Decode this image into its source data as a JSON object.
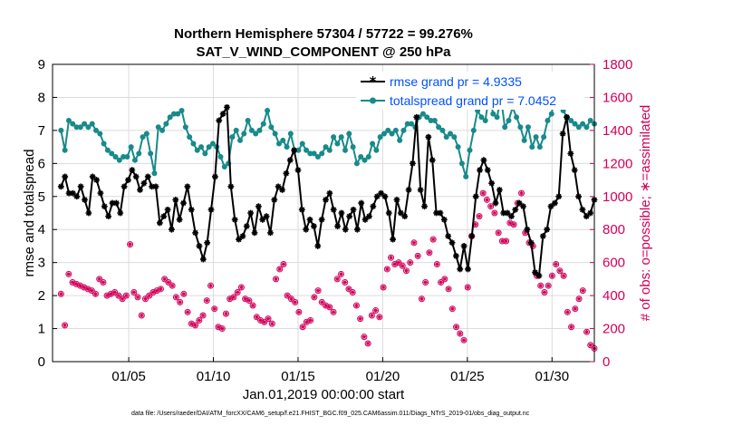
{
  "chart_data": {
    "type": "line",
    "title": "Northern Hemisphere 57304 / 57722 = 99.276%",
    "subtitle": "SAT_V_WIND_COMPONENT @ 250 hPa",
    "xlabel": "Jan.01,2019 00:00:00 start",
    "ylabel_left": "rmse and totalspread",
    "ylabel_right": "# of obs: o=possible; ∗=assimilated",
    "xlim": [
      0.5,
      32.5
    ],
    "ylim_left": [
      0,
      9
    ],
    "ylim_right": [
      0,
      1800
    ],
    "x_ticks": [
      5,
      10,
      15,
      20,
      25,
      30
    ],
    "x_tick_labels": [
      "01/05",
      "01/10",
      "01/15",
      "01/20",
      "01/25",
      "01/30"
    ],
    "y_ticks_left": [
      0,
      1,
      2,
      3,
      4,
      5,
      6,
      7,
      8,
      9
    ],
    "y_ticks_right": [
      0,
      200,
      400,
      600,
      800,
      1000,
      1200,
      1400,
      1600,
      1800
    ],
    "grid": true,
    "legend_position": "top-right",
    "colors": {
      "rmse": "#000000",
      "spread": "#188a8a",
      "obs": "#d1005a",
      "legend_text": "#0050ff"
    },
    "series": [
      {
        "name": "rmse grand pr = 4.9335",
        "axis": "left",
        "values": [
          5.3,
          5.6,
          5.1,
          5.1,
          5.0,
          5.3,
          4.9,
          4.5,
          5.6,
          5.5,
          5.1,
          4.7,
          4.4,
          4.8,
          4.8,
          4.5,
          5.3,
          5.5,
          5.8,
          5.6,
          5.2,
          5.4,
          5.6,
          5.3,
          5.3,
          4.2,
          4.4,
          4.6,
          4.0,
          4.9,
          4.3,
          4.8,
          5.3,
          4.6,
          3.9,
          3.5,
          3.1,
          3.6,
          4.6,
          5.6,
          7.3,
          7.5,
          7.7,
          5.3,
          4.3,
          3.7,
          3.8,
          4.1,
          4.5,
          3.9,
          4.7,
          4.3,
          4.4,
          3.9,
          4.9,
          5.3,
          5.2,
          5.7,
          6.1,
          6.4,
          5.8,
          4.6,
          4.0,
          4.3,
          4.1,
          3.5,
          4.3,
          4.9,
          5.1,
          4.6,
          4.1,
          4.5,
          4.0,
          4.4,
          4.6,
          4.0,
          4.8,
          4.3,
          4.4,
          4.7,
          5.0,
          5.1,
          5.0,
          4.5,
          3.7,
          4.9,
          4.5,
          4.4,
          5.2,
          6.0,
          7.4,
          5.2,
          4.7,
          6.8,
          6.1,
          4.5,
          4.5,
          4.3,
          3.8,
          3.6,
          3.2,
          2.8,
          3.5,
          2.8,
          3.8,
          5.0,
          5.8,
          6.1,
          5.8,
          5.4,
          4.8,
          5.2,
          4.5,
          4.5,
          4.4,
          4.6,
          4.8,
          4.7,
          4.0,
          3.6,
          2.7,
          2.6,
          3.8,
          4.0,
          4.7,
          4.8,
          5.0,
          6.9,
          7.4,
          6.3,
          5.8,
          5.0,
          4.6,
          4.4,
          4.5,
          4.9
        ]
      },
      {
        "name": "totalspread grand pr = 7.0452",
        "axis": "left",
        "values": [
          7.0,
          6.4,
          7.3,
          7.2,
          7.1,
          7.1,
          7.2,
          7.1,
          7.2,
          7.0,
          6.9,
          6.6,
          6.4,
          6.3,
          6.2,
          6.1,
          6.2,
          6.2,
          6.5,
          6.1,
          6.3,
          6.8,
          6.9,
          6.3,
          5.7,
          7.1,
          7.0,
          7.2,
          7.4,
          7.5,
          7.5,
          7.6,
          7.1,
          6.8,
          6.6,
          6.4,
          6.5,
          6.3,
          6.5,
          6.6,
          6.5,
          6.2,
          5.9,
          6.0,
          6.8,
          7.0,
          6.7,
          6.9,
          7.3,
          7.0,
          6.9,
          7.0,
          7.2,
          7.6,
          7.1,
          6.9,
          6.6,
          6.7,
          6.5,
          6.9,
          6.4,
          6.4,
          6.6,
          6.4,
          6.3,
          6.3,
          6.2,
          6.3,
          6.5,
          6.4,
          6.8,
          6.6,
          6.8,
          6.4,
          6.9,
          6.5,
          6.0,
          6.2,
          6.1,
          6.2,
          6.6,
          6.4,
          6.8,
          6.9,
          7.0,
          6.9,
          7.0,
          6.7,
          7.0,
          7.2,
          7.2,
          7.1,
          7.4,
          7.5,
          7.4,
          7.3,
          7.3,
          7.1,
          7.0,
          6.8,
          6.9,
          6.8,
          6.5,
          6.0,
          5.6,
          6.4,
          7.0,
          7.6,
          7.4,
          7.3,
          8.1,
          7.5,
          7.4,
          8.0,
          7.1,
          7.3,
          7.7,
          7.4,
          7.1,
          6.7,
          7.1,
          6.5,
          6.8,
          6.5,
          6.8,
          7.3,
          7.5,
          8.1,
          8.1,
          7.6,
          7.4,
          7.3,
          7.2,
          7.1,
          7.2,
          7.1,
          7.3,
          7.2
        ]
      },
      {
        "name": "# of obs assimilated",
        "axis": "right",
        "values": [
          410,
          220,
          530,
          480,
          470,
          460,
          450,
          440,
          430,
          410,
          500,
          480,
          400,
          410,
          420,
          400,
          380,
          400,
          710,
          420,
          390,
          280,
          380,
          400,
          420,
          430,
          440,
          500,
          480,
          460,
          390,
          360,
          410,
          300,
          230,
          220,
          250,
          280,
          370,
          460,
          320,
          210,
          200,
          290,
          380,
          390,
          420,
          450,
          380,
          370,
          340,
          270,
          250,
          240,
          260,
          230,
          500,
          560,
          590,
          400,
          380,
          360,
          300,
          210,
          240,
          250,
          390,
          430,
          360,
          340,
          330,
          300,
          500,
          530,
          480,
          440,
          420,
          340,
          260,
          150,
          110,
          280,
          310,
          270,
          450,
          560,
          630,
          590,
          600,
          580,
          550,
          600,
          720,
          640,
          380,
          480,
          660,
          740,
          590,
          480,
          500,
          440,
          320,
          210,
          170,
          130,
          450,
          760,
          830,
          880,
          1020,
          980,
          940,
          900,
          780,
          730,
          730,
          840,
          830,
          960,
          1020,
          780,
          720,
          700,
          520,
          460,
          420,
          460,
          520,
          590,
          550,
          520,
          300,
          210,
          320,
          380,
          430,
          180,
          100,
          80
        ]
      },
      {
        "name": "# of obs possible",
        "axis": "right",
        "values": [
          410,
          220,
          530,
          480,
          470,
          460,
          450,
          440,
          430,
          410,
          500,
          480,
          400,
          410,
          420,
          400,
          380,
          400,
          710,
          420,
          390,
          280,
          380,
          400,
          420,
          430,
          440,
          500,
          480,
          460,
          390,
          360,
          410,
          300,
          230,
          220,
          250,
          280,
          370,
          460,
          320,
          210,
          200,
          290,
          380,
          390,
          420,
          450,
          380,
          370,
          340,
          270,
          250,
          240,
          260,
          230,
          500,
          560,
          590,
          400,
          380,
          360,
          300,
          210,
          240,
          250,
          390,
          430,
          360,
          340,
          330,
          300,
          500,
          530,
          480,
          440,
          420,
          340,
          260,
          150,
          110,
          280,
          310,
          270,
          450,
          560,
          630,
          590,
          600,
          580,
          550,
          600,
          720,
          640,
          380,
          480,
          660,
          740,
          590,
          480,
          500,
          440,
          320,
          210,
          170,
          130,
          450,
          760,
          830,
          880,
          1020,
          980,
          940,
          900,
          780,
          730,
          730,
          840,
          830,
          960,
          1020,
          780,
          720,
          700,
          520,
          460,
          420,
          460,
          520,
          590,
          550,
          520,
          300,
          210,
          320,
          380,
          430,
          180,
          100,
          80
        ]
      }
    ]
  },
  "footer": "data file: /Users/raeder/DAI/ATM_forcXX/CAM6_setup/f.e21.FHIST_BGC.f09_025.CAM6assim.011/Diags_NTrS_2019-01/obs_diag_output.nc"
}
